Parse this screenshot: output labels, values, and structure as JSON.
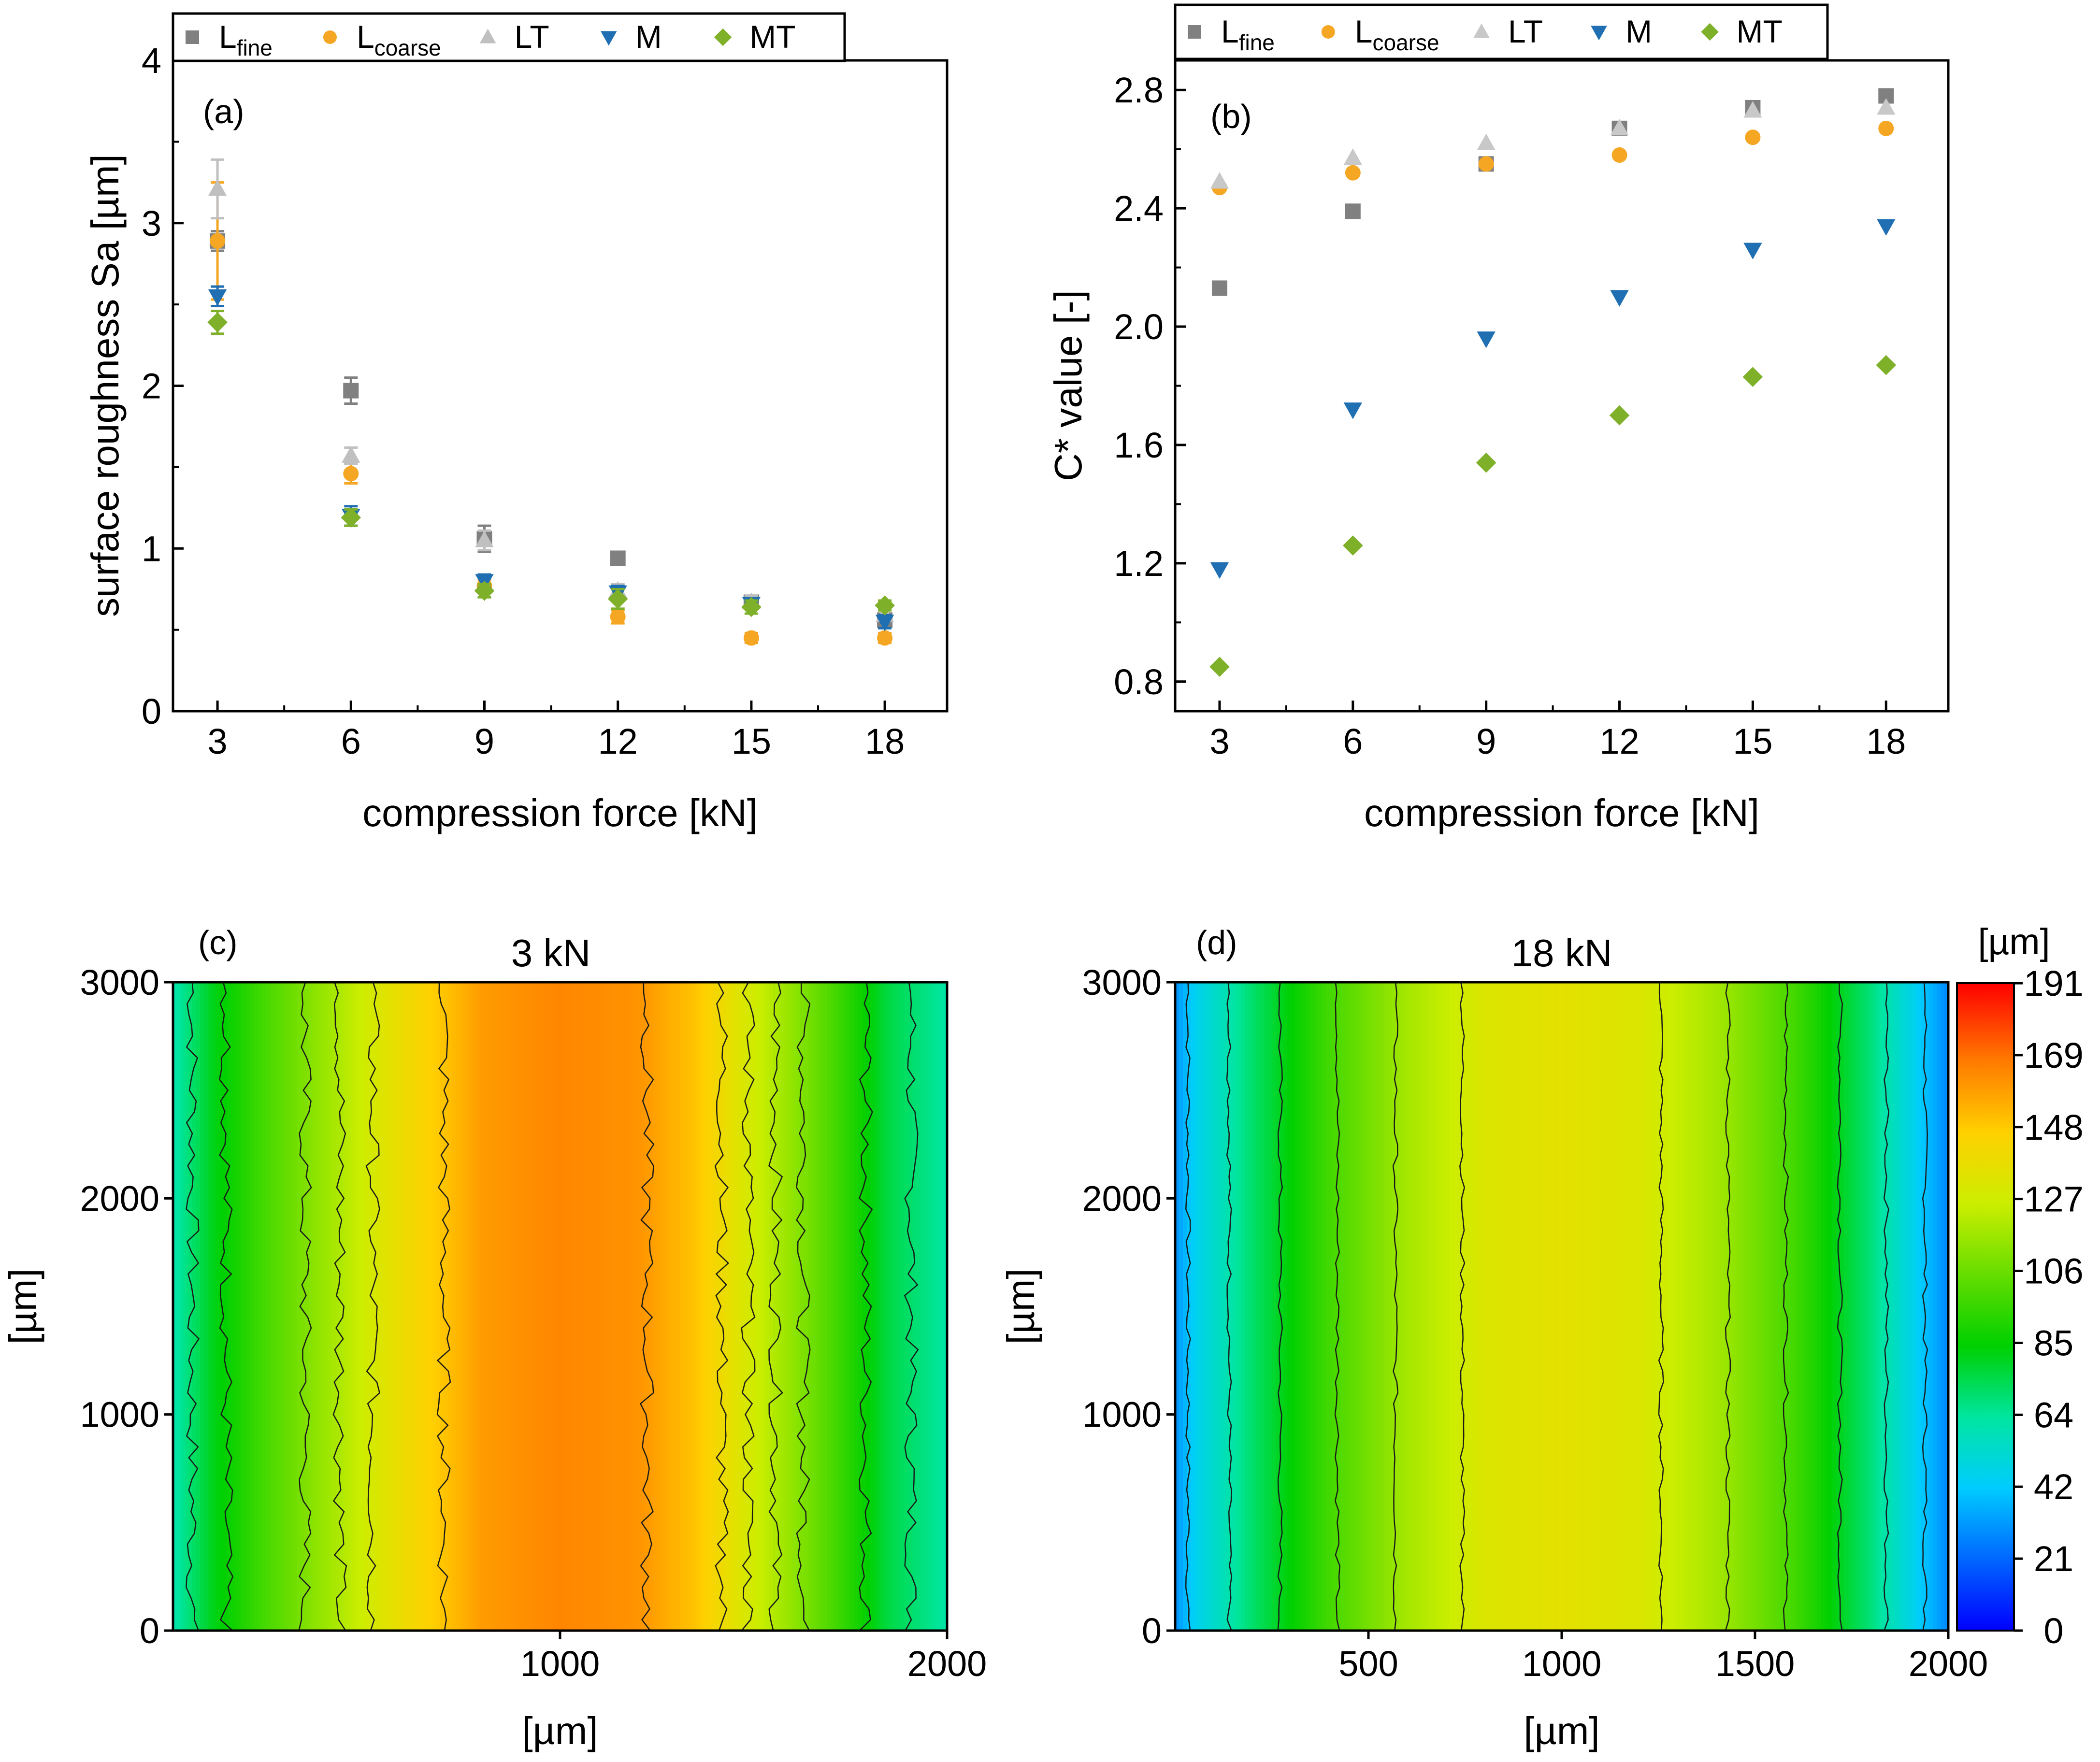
{
  "chart_data": [
    {
      "panel": "(a)",
      "type": "scatter",
      "title": "",
      "xlabel": "compression force [kN]",
      "ylabel": "surface roughness Sa [µm]",
      "xlim": [
        2,
        19.4
      ],
      "ylim": [
        0,
        4
      ],
      "xticks": [
        "3",
        "6",
        "9",
        "12",
        "15",
        "18"
      ],
      "yticks": [
        "0",
        "1",
        "2",
        "3",
        "4"
      ],
      "legend": [
        {
          "main": "L",
          "sub": "fine"
        },
        {
          "main": "L",
          "sub": "coarse"
        },
        {
          "main": "LT",
          "sub": ""
        },
        {
          "main": "M",
          "sub": ""
        },
        {
          "main": "MT",
          "sub": ""
        }
      ],
      "x": [
        3,
        6,
        9,
        12,
        15,
        18
      ],
      "series": [
        {
          "name": "Lfine",
          "marker": "square",
          "color": "#808080",
          "values": [
            2.89,
            1.97,
            1.06,
            0.94,
            0.67,
            0.56
          ],
          "err": [
            0.06,
            0.08,
            0.08,
            0.03,
            0.04,
            0.04
          ]
        },
        {
          "name": "Lcoarse",
          "marker": "circle",
          "color": "#f5a623",
          "values": [
            2.89,
            1.46,
            0.77,
            0.58,
            0.45,
            0.45
          ],
          "err": [
            0.36,
            0.06,
            0.04,
            0.04,
            0.03,
            0.03
          ]
        },
        {
          "name": "LT",
          "marker": "triangle-up",
          "color": "#c0c0c0",
          "values": [
            3.21,
            1.57,
            1.05,
            0.74,
            0.67,
            0.59
          ],
          "err": [
            0.18,
            0.05,
            0.06,
            0.04,
            0.04,
            0.03
          ]
        },
        {
          "name": "M",
          "marker": "triangle-down",
          "color": "#1f6fb2",
          "values": [
            2.55,
            1.2,
            0.8,
            0.73,
            0.66,
            0.55
          ],
          "err": [
            0.06,
            0.06,
            0.04,
            0.04,
            0.03,
            0.04
          ]
        },
        {
          "name": "MT",
          "marker": "diamond",
          "color": "#7fb02a",
          "values": [
            2.39,
            1.19,
            0.74,
            0.69,
            0.64,
            0.65
          ],
          "err": [
            0.07,
            0.05,
            0.04,
            0.06,
            0.04,
            0.03
          ]
        }
      ]
    },
    {
      "panel": "(b)",
      "type": "scatter",
      "title": "",
      "xlabel": "compression force [kN]",
      "ylabel": "C* value [-]",
      "xlim": [
        2,
        19.4
      ],
      "ylim": [
        0.7,
        2.9
      ],
      "xticks": [
        "3",
        "6",
        "9",
        "12",
        "15",
        "18"
      ],
      "yticks": [
        "0.8",
        "1.2",
        "1.6",
        "2.0",
        "2.4",
        "2.8"
      ],
      "legend": [
        {
          "main": "L",
          "sub": "fine"
        },
        {
          "main": "L",
          "sub": "coarse"
        },
        {
          "main": "LT",
          "sub": ""
        },
        {
          "main": "M",
          "sub": ""
        },
        {
          "main": "MT",
          "sub": ""
        }
      ],
      "x": [
        3,
        6,
        9,
        12,
        15,
        18
      ],
      "series": [
        {
          "name": "Lfine",
          "marker": "square",
          "color": "#808080",
          "values": [
            2.13,
            2.39,
            2.55,
            2.67,
            2.74,
            2.78
          ]
        },
        {
          "name": "Lcoarse",
          "marker": "circle",
          "color": "#f5a623",
          "values": [
            2.47,
            2.52,
            2.55,
            2.58,
            2.64,
            2.67
          ]
        },
        {
          "name": "LT",
          "marker": "triangle-up",
          "color": "#c8c8c8",
          "values": [
            2.49,
            2.57,
            2.62,
            2.67,
            2.73,
            2.74
          ]
        },
        {
          "name": "M",
          "marker": "triangle-down",
          "color": "#1f6fb2",
          "values": [
            1.18,
            1.72,
            1.96,
            2.1,
            2.26,
            2.34
          ]
        },
        {
          "name": "MT",
          "marker": "diamond",
          "color": "#7fb02a",
          "values": [
            0.85,
            1.26,
            1.54,
            1.7,
            1.83,
            1.87
          ]
        }
      ]
    },
    {
      "panel": "(c)",
      "type": "heatmap",
      "title": "3 kN",
      "xlabel": "[µm]",
      "ylabel": "[µm]",
      "xlim": [
        0,
        2000
      ],
      "ylim": [
        0,
        3000
      ],
      "xticks": [
        "1000",
        "2000"
      ],
      "yticks": [
        "0",
        "1000",
        "2000",
        "3000"
      ],
      "profile_x": [
        0,
        100,
        250,
        450,
        600,
        800,
        1000,
        1200,
        1350,
        1500,
        1700,
        1850,
        2000
      ],
      "profile_height": [
        60,
        80,
        100,
        122,
        140,
        160,
        165,
        162,
        150,
        128,
        100,
        75,
        62
      ]
    },
    {
      "panel": "(d)",
      "type": "heatmap",
      "title": "18 kN",
      "xlabel": "[µm]",
      "ylabel": "[µm]",
      "xlim": [
        0,
        2000
      ],
      "ylim": [
        0,
        3000
      ],
      "xticks": [
        "500",
        "1000",
        "1500",
        "2000"
      ],
      "yticks": [
        "0",
        "1000",
        "2000",
        "3000"
      ],
      "profile_x": [
        0,
        50,
        200,
        400,
        600,
        800,
        1000,
        1200,
        1400,
        1600,
        1800,
        1950,
        2000
      ],
      "profile_height": [
        30,
        45,
        70,
        98,
        118,
        132,
        136,
        132,
        118,
        98,
        68,
        38,
        28
      ]
    }
  ],
  "colorbar": {
    "unit": "[µm]",
    "labels": [
      "191",
      "169",
      "148",
      "127",
      "106",
      "85",
      "64",
      "42",
      "21",
      "0"
    ],
    "min": 0,
    "max": 191
  }
}
